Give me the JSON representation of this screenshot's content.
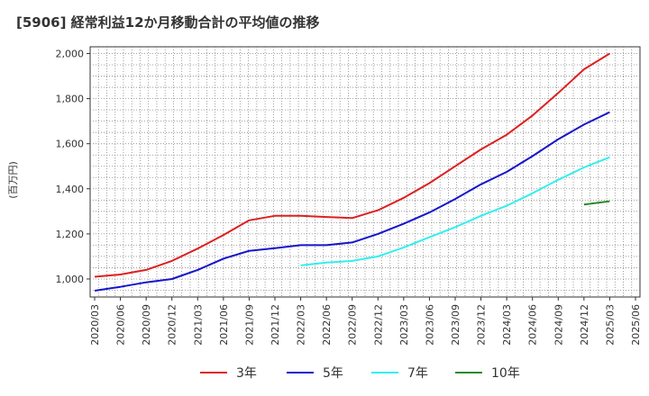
{
  "chart_data": {
    "type": "line",
    "title": "[5906]  経常利益12か月移動合計の平均値の推移",
    "ylabel": "(百万円)",
    "ylim": [
      920,
      2030
    ],
    "yticks": [
      1000,
      1200,
      1400,
      1600,
      1800,
      2000
    ],
    "ytick_labels": [
      "1,000",
      "1,200",
      "1,400",
      "1,600",
      "1,800",
      "2,000"
    ],
    "x": [
      "2020/03",
      "2020/06",
      "2020/09",
      "2020/12",
      "2021/03",
      "2021/06",
      "2021/09",
      "2021/12",
      "2022/03",
      "2022/06",
      "2022/09",
      "2022/12",
      "2023/03",
      "2023/06",
      "2023/09",
      "2023/12",
      "2024/03",
      "2024/06",
      "2024/09",
      "2024/12",
      "2025/03",
      "2025/06"
    ],
    "grid": true,
    "legend_position": "bottom",
    "series": [
      {
        "name": "3年",
        "color": "#dd2020",
        "values": [
          1010,
          1020,
          1040,
          1080,
          1135,
          1195,
          1260,
          1280,
          1280,
          1275,
          1270,
          1305,
          1360,
          1425,
          1500,
          1575,
          1640,
          1725,
          1825,
          1930,
          2000,
          null
        ]
      },
      {
        "name": "5年",
        "color": "#1515cc",
        "values": [
          948,
          965,
          985,
          1000,
          1040,
          1090,
          1125,
          1137,
          1150,
          1150,
          1162,
          1200,
          1245,
          1295,
          1355,
          1420,
          1475,
          1545,
          1620,
          1685,
          1740,
          null
        ]
      },
      {
        "name": "7年",
        "color": "#33eeee",
        "values": [
          null,
          null,
          null,
          null,
          null,
          null,
          null,
          null,
          1060,
          1073,
          1080,
          1100,
          1140,
          1185,
          1230,
          1280,
          1325,
          1380,
          1440,
          1495,
          1540,
          null
        ]
      },
      {
        "name": "10年",
        "color": "#2a8a2a",
        "values": [
          null,
          null,
          null,
          null,
          null,
          null,
          null,
          null,
          null,
          null,
          null,
          null,
          null,
          null,
          null,
          null,
          null,
          null,
          null,
          1330,
          1345,
          null
        ]
      }
    ]
  }
}
